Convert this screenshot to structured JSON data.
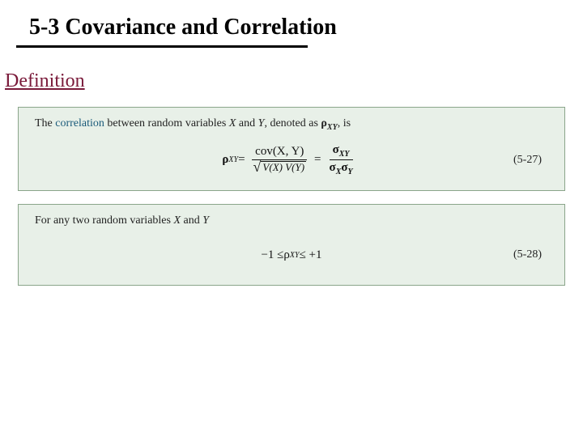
{
  "title": "5-3 Covariance and Correlation",
  "section_heading": "Definition",
  "panel1": {
    "lead_prefix": "The ",
    "keyword": "correlation",
    "lead_mid": " between random variables ",
    "varX": "X",
    "and": " and ",
    "varY": "Y",
    "lead_after": ", denoted as ",
    "rho_label": "ρ",
    "rho_sub": "XY",
    "lead_end": ", is",
    "eq": {
      "lhs_sym": "ρ",
      "lhs_sub": "XY",
      "equals": " = ",
      "frac1_num": "cov(X, Y)",
      "frac1_den_sqrt_inner": "V(X) V(Y)",
      "frac2_num_sym": "σ",
      "frac2_num_sub": "XY",
      "frac2_den_s1": "σ",
      "frac2_den_s1_sub": "X",
      "frac2_den_s2": "σ",
      "frac2_den_s2_sub": "Y"
    },
    "eq_num": "(5-27)"
  },
  "panel2": {
    "lead_prefix": "For any two random variables ",
    "varX": "X",
    "and": " and ",
    "varY": "Y",
    "eq": {
      "lhs": "−1 ≤ ",
      "rho": "ρ",
      "rho_sub": "XY",
      "rhs": " ≤ +1"
    },
    "eq_num": "(5-28)"
  },
  "colors": {
    "heading": "#7a1a3a",
    "keyword": "#1a5a7a",
    "panel_bg": "#e8f0e8",
    "panel_border": "#8aa58a",
    "rule": "#000000"
  }
}
